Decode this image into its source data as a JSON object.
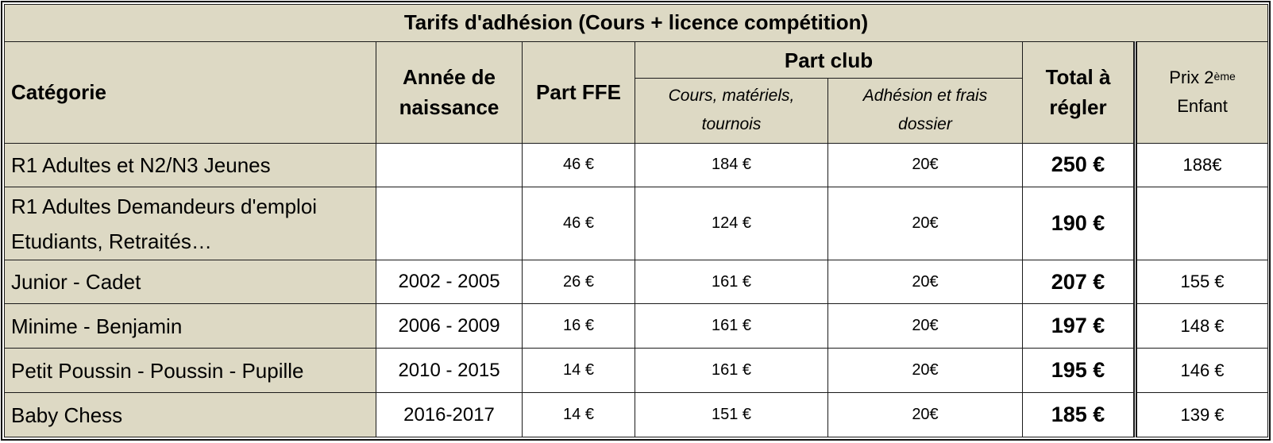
{
  "table": {
    "title": "Tarifs d'adhésion (Cours + licence compétition)",
    "headers": {
      "categorie": "Catégorie",
      "annee": "Année de naissance",
      "part_ffe": "Part FFE",
      "part_club": "Part club",
      "cours": "Cours, matériels, tournois",
      "adhesion": "Adhésion et frais dossier",
      "total": "Total à régler",
      "prix_2": "Prix 2",
      "prix_2_sup": "ème",
      "prix_enfant": "Enfant"
    },
    "rows": [
      {
        "categorie": "R1 Adultes et N2/N3 Jeunes",
        "annee": "",
        "part_ffe": "46 €",
        "cours": "184 €",
        "adhesion": "20€",
        "total": "250 €",
        "prix2": "188€"
      },
      {
        "categorie_l1": "R1 Adultes Demandeurs d'emploi",
        "categorie_l2": "Etudiants, Retraités…",
        "annee": "",
        "part_ffe": "46 €",
        "cours": "124 €",
        "adhesion": "20€",
        "total": "190 €",
        "prix2": ""
      },
      {
        "categorie": "Junior - Cadet",
        "annee": "2002 - 2005",
        "part_ffe": "26 €",
        "cours": "161 €",
        "adhesion": "20€",
        "total": "207 €",
        "prix2": "155 €"
      },
      {
        "categorie": "Minime - Benjamin",
        "annee": "2006 - 2009",
        "part_ffe": "16 €",
        "cours": "161 €",
        "adhesion": "20€",
        "total": "197 €",
        "prix2": "148 €"
      },
      {
        "categorie": "Petit Poussin - Poussin - Pupille",
        "annee": "2010 - 2015",
        "part_ffe": "14 €",
        "cours": "161 €",
        "adhesion": "20€",
        "total": "195 €",
        "prix2": "146 €"
      },
      {
        "categorie": "Baby Chess",
        "annee": "2016-2017",
        "part_ffe": "14 €",
        "cours": "151 €",
        "adhesion": "20€",
        "total": "185 €",
        "prix2": "139 €"
      }
    ]
  }
}
